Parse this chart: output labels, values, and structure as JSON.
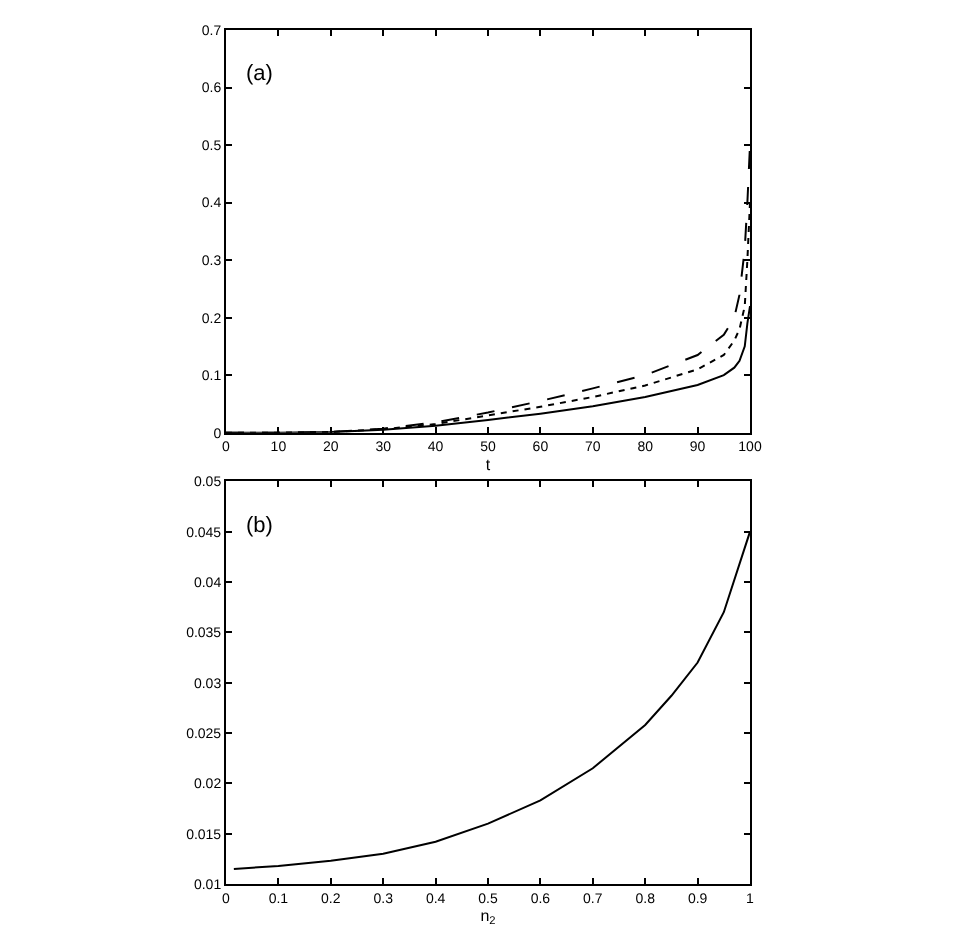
{
  "chart_data": [
    {
      "type": "line",
      "xlabel": "t",
      "annotations": [
        "(a)"
      ],
      "xlim": [
        0,
        100
      ],
      "ylim": [
        0,
        0.7
      ],
      "xticks": [
        0,
        10,
        20,
        30,
        40,
        50,
        60,
        70,
        80,
        90,
        100
      ],
      "yticks": [
        0,
        0.1,
        0.2,
        0.3,
        0.4,
        0.5,
        0.6,
        0.7
      ],
      "series": [
        {
          "color": "#000000",
          "line_style": "solid",
          "x": [
            0,
            10,
            20,
            30,
            40,
            50,
            60,
            70,
            80,
            90,
            95,
            97,
            98,
            99,
            99.5,
            100
          ],
          "values": [
            0,
            0,
            0.001,
            0.005,
            0.012,
            0.022,
            0.033,
            0.046,
            0.062,
            0.083,
            0.1,
            0.113,
            0.125,
            0.15,
            0.19,
            0.22
          ]
        },
        {
          "color": "#000000",
          "line_style": "dotted",
          "x": [
            0,
            10,
            20,
            30,
            40,
            50,
            60,
            70,
            80,
            90,
            95,
            97,
            98,
            99,
            99.5,
            100
          ],
          "values": [
            0,
            0,
            0.001,
            0.006,
            0.015,
            0.03,
            0.045,
            0.062,
            0.082,
            0.11,
            0.135,
            0.16,
            0.18,
            0.22,
            0.3,
            0.4
          ]
        },
        {
          "color": "#000000",
          "line_style": "dashed",
          "x": [
            0,
            10,
            20,
            30,
            40,
            50,
            60,
            70,
            80,
            90,
            95,
            97,
            98,
            99,
            99.5,
            100
          ],
          "values": [
            0,
            0,
            0.001,
            0.007,
            0.018,
            0.035,
            0.055,
            0.077,
            0.1,
            0.135,
            0.17,
            0.2,
            0.24,
            0.32,
            0.4,
            0.5
          ]
        }
      ]
    },
    {
      "type": "line",
      "xlabel": "n$_{2}$",
      "annotations": [
        "(b)"
      ],
      "xlim": [
        0,
        1
      ],
      "ylim": [
        0.01,
        0.05
      ],
      "xticks": [
        0,
        0.1,
        0.2,
        0.3,
        0.4,
        0.5,
        0.6,
        0.7,
        0.8,
        0.9,
        1
      ],
      "yticks": [
        0.01,
        0.015,
        0.02,
        0.025,
        0.03,
        0.035,
        0.04,
        0.045,
        0.05
      ],
      "series": [
        {
          "color": "#000000",
          "line_style": "solid",
          "x": [
            0.015,
            0.1,
            0.2,
            0.3,
            0.4,
            0.5,
            0.6,
            0.7,
            0.8,
            0.85,
            0.9,
            0.95,
            1
          ],
          "values": [
            0.0115,
            0.0118,
            0.0123,
            0.013,
            0.0142,
            0.016,
            0.0183,
            0.0215,
            0.0258,
            0.0287,
            0.032,
            0.037,
            0.045
          ]
        }
      ]
    }
  ]
}
